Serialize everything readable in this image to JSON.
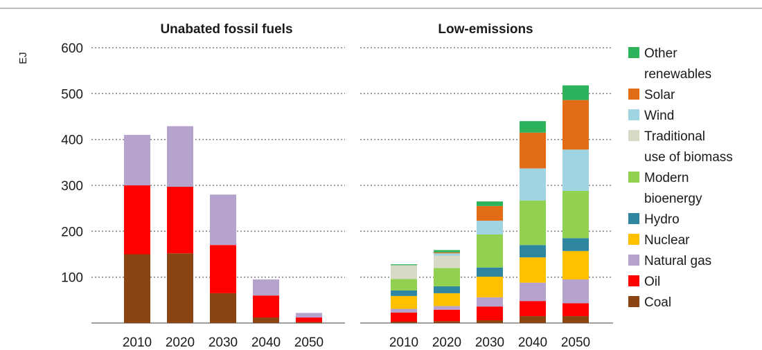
{
  "chart_data": {
    "type": "bar",
    "stacked": true,
    "ylabel": "EJ",
    "ylim": [
      0,
      600
    ],
    "yticks": [
      100,
      200,
      300,
      400,
      500,
      600
    ],
    "grid": true,
    "legend_position": "right",
    "legend": [
      {
        "label": [
          "Other",
          "renewables"
        ],
        "key": "other_renewables",
        "color": "#2db35c"
      },
      {
        "label": [
          "Solar"
        ],
        "key": "solar",
        "color": "#e36c17"
      },
      {
        "label": [
          "Wind"
        ],
        "key": "wind",
        "color": "#9fd4e2"
      },
      {
        "label": [
          "Traditional",
          "use of biomass"
        ],
        "key": "traditional_biomass",
        "color": "#d9d9c8"
      },
      {
        "label": [
          "Modern",
          "bioenergy"
        ],
        "key": "modern_bioenergy",
        "color": "#92d050"
      },
      {
        "label": [
          "Hydro"
        ],
        "key": "hydro",
        "color": "#2e86a0"
      },
      {
        "label": [
          "Nuclear"
        ],
        "key": "nuclear",
        "color": "#ffc000"
      },
      {
        "label": [
          "Natural gas"
        ],
        "key": "natural_gas",
        "color": "#b5a3cd"
      },
      {
        "label": [
          "Oil"
        ],
        "key": "oil",
        "color": "#ff0000"
      },
      {
        "label": [
          "Coal"
        ],
        "key": "coal",
        "color": "#8b4513"
      }
    ],
    "panels": [
      {
        "title": "Unabated fossil fuels",
        "categories": [
          "2010",
          "2020",
          "2030",
          "2040",
          "2050"
        ],
        "series": [
          {
            "key": "coal",
            "values": [
              150,
              152,
              65,
              12,
              2
            ]
          },
          {
            "key": "oil",
            "values": [
              150,
              145,
              105,
              48,
              10
            ]
          },
          {
            "key": "natural_gas",
            "values": [
              110,
              132,
              110,
              35,
              10
            ]
          }
        ]
      },
      {
        "title": "Low-emissions",
        "categories": [
          "2010",
          "2020",
          "2030",
          "2040",
          "2050"
        ],
        "series": [
          {
            "key": "coal",
            "values": [
              3,
              4,
              6,
              15,
              15
            ]
          },
          {
            "key": "oil",
            "values": [
              20,
              25,
              30,
              33,
              28
            ]
          },
          {
            "key": "natural_gas",
            "values": [
              8,
              8,
              20,
              40,
              52
            ]
          },
          {
            "key": "nuclear",
            "values": [
              28,
              28,
              45,
              55,
              62
            ]
          },
          {
            "key": "hydro",
            "values": [
              12,
              15,
              20,
              27,
              28
            ]
          },
          {
            "key": "modern_bioenergy",
            "values": [
              25,
              40,
              72,
              97,
              103
            ]
          },
          {
            "key": "traditional_biomass",
            "values": [
              30,
              27,
              0,
              0,
              0
            ]
          },
          {
            "key": "wind",
            "values": [
              0,
              5,
              30,
              70,
              90
            ]
          },
          {
            "key": "solar",
            "values": [
              0,
              2,
              32,
              78,
              108
            ]
          },
          {
            "key": "other_renewables",
            "values": [
              2,
              5,
              10,
              25,
              32
            ]
          }
        ]
      }
    ]
  }
}
